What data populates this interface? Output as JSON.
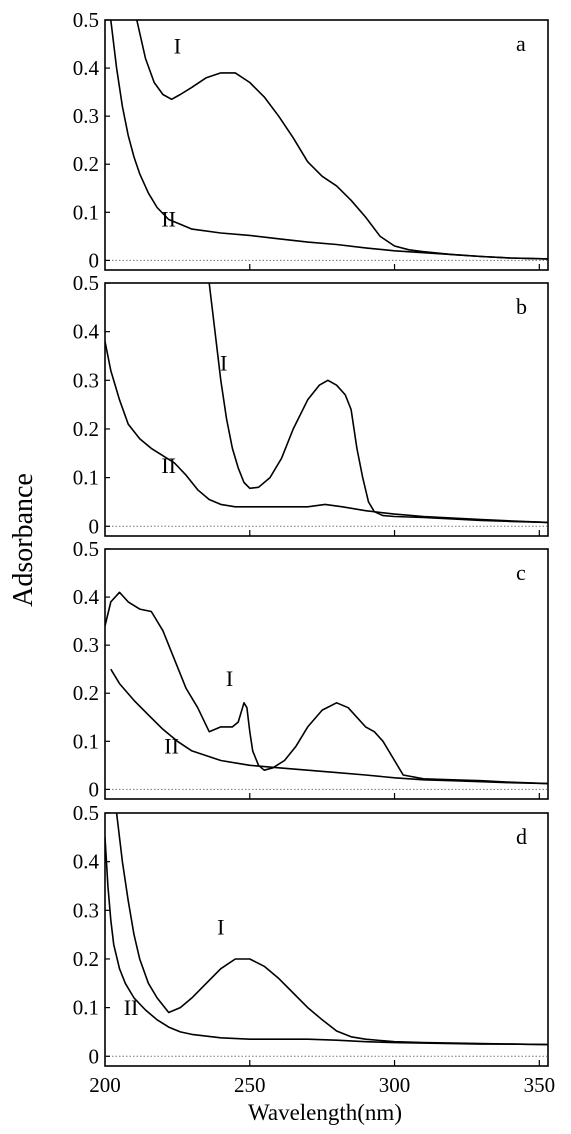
{
  "figure": {
    "ylabel": "Adsorbance",
    "xlabel": "Wavelength(nm)",
    "x_tick_labels": [
      "200",
      "250",
      "300",
      "350"
    ]
  },
  "chart_data": [
    {
      "type": "line",
      "panel_label": "a",
      "xlim": [
        200,
        353
      ],
      "ylim": [
        -0.02,
        0.5
      ],
      "yticks": [
        0,
        0.1,
        0.2,
        0.3,
        0.4,
        0.5
      ],
      "ytick_labels": [
        "0",
        "0.1",
        "0.2",
        "0.3",
        "0.4",
        "0.5"
      ],
      "baseline": 0,
      "series": [
        {
          "name": "I",
          "label_at": [
            225,
            0.43
          ],
          "x": [
            211,
            214,
            217,
            220,
            223,
            226,
            230,
            235,
            240,
            245,
            250,
            255,
            260,
            265,
            270,
            275,
            280,
            285,
            290,
            295,
            300,
            305,
            310,
            320,
            330,
            340,
            353
          ],
          "y": [
            0.5,
            0.42,
            0.37,
            0.345,
            0.335,
            0.345,
            0.36,
            0.38,
            0.39,
            0.39,
            0.37,
            0.34,
            0.3,
            0.255,
            0.205,
            0.175,
            0.155,
            0.125,
            0.09,
            0.05,
            0.03,
            0.022,
            0.018,
            0.012,
            0.008,
            0.005,
            0.003
          ]
        },
        {
          "name": "II",
          "label_at": [
            222,
            0.07
          ],
          "x": [
            202,
            204,
            206,
            208,
            210,
            212,
            215,
            218,
            222,
            226,
            230,
            240,
            250,
            260,
            270,
            280,
            290,
            300,
            310,
            320,
            330,
            340,
            353
          ],
          "y": [
            0.5,
            0.4,
            0.32,
            0.26,
            0.215,
            0.18,
            0.14,
            0.11,
            0.085,
            0.075,
            0.065,
            0.057,
            0.052,
            0.045,
            0.038,
            0.033,
            0.026,
            0.02,
            0.016,
            0.012,
            0.008,
            0.005,
            0.003
          ]
        }
      ]
    },
    {
      "type": "line",
      "panel_label": "b",
      "xlim": [
        200,
        353
      ],
      "ylim": [
        -0.02,
        0.5
      ],
      "yticks": [
        0,
        0.1,
        0.2,
        0.3,
        0.4,
        0.5
      ],
      "ytick_labels": [
        "0",
        "0.1",
        "0.2",
        "0.3",
        "0.4",
        "0.5"
      ],
      "baseline": 0,
      "series": [
        {
          "name": "I",
          "label_at": [
            241,
            0.32
          ],
          "x": [
            236,
            237,
            238,
            239,
            240,
            242,
            244,
            246,
            248,
            250,
            253,
            257,
            261,
            265,
            270,
            274,
            277,
            280,
            283,
            285,
            287,
            289,
            291,
            293,
            296,
            300,
            310,
            320,
            330,
            340,
            353
          ],
          "y": [
            0.5,
            0.45,
            0.4,
            0.35,
            0.3,
            0.22,
            0.16,
            0.12,
            0.09,
            0.078,
            0.08,
            0.1,
            0.14,
            0.2,
            0.26,
            0.29,
            0.3,
            0.29,
            0.27,
            0.24,
            0.16,
            0.1,
            0.05,
            0.03,
            0.022,
            0.02,
            0.018,
            0.015,
            0.012,
            0.01,
            0.008
          ]
        },
        {
          "name": "II",
          "label_at": [
            222,
            0.11
          ],
          "x": [
            200,
            202,
            205,
            208,
            212,
            216,
            220,
            224,
            228,
            232,
            236,
            240,
            245,
            250,
            260,
            270,
            276,
            282,
            290,
            300,
            310,
            320,
            330,
            340,
            353
          ],
          "y": [
            0.38,
            0.32,
            0.26,
            0.21,
            0.18,
            0.16,
            0.145,
            0.13,
            0.105,
            0.075,
            0.055,
            0.045,
            0.04,
            0.04,
            0.04,
            0.04,
            0.045,
            0.04,
            0.032,
            0.025,
            0.02,
            0.017,
            0.014,
            0.011,
            0.008
          ]
        }
      ]
    },
    {
      "type": "line",
      "panel_label": "c",
      "xlim": [
        200,
        353
      ],
      "ylim": [
        -0.02,
        0.5
      ],
      "yticks": [
        0,
        0.1,
        0.2,
        0.3,
        0.4,
        0.5
      ],
      "ytick_labels": [
        "0",
        "0.1",
        "0.2",
        "0.3",
        "0.4",
        "0.5"
      ],
      "baseline": 0,
      "series": [
        {
          "name": "I",
          "label_at": [
            243,
            0.215
          ],
          "x": [
            200,
            202,
            205,
            208,
            212,
            216,
            220,
            224,
            228,
            232,
            236,
            240,
            244,
            246,
            248,
            249,
            250,
            251,
            253,
            255,
            258,
            262,
            266,
            270,
            275,
            280,
            284,
            287,
            290,
            293,
            296,
            300,
            303,
            310,
            320,
            330,
            340,
            353
          ],
          "y": [
            0.34,
            0.39,
            0.41,
            0.39,
            0.375,
            0.37,
            0.33,
            0.27,
            0.21,
            0.17,
            0.12,
            0.13,
            0.13,
            0.14,
            0.18,
            0.17,
            0.12,
            0.08,
            0.05,
            0.04,
            0.045,
            0.06,
            0.09,
            0.13,
            0.165,
            0.18,
            0.17,
            0.15,
            0.13,
            0.12,
            0.1,
            0.06,
            0.03,
            0.022,
            0.02,
            0.018,
            0.015,
            0.012
          ]
        },
        {
          "name": "II",
          "label_at": [
            223,
            0.075
          ],
          "x": [
            202,
            205,
            210,
            215,
            220,
            225,
            230,
            240,
            250,
            260,
            270,
            280,
            290,
            300,
            310,
            320,
            330,
            340,
            353
          ],
          "y": [
            0.25,
            0.22,
            0.185,
            0.155,
            0.125,
            0.1,
            0.08,
            0.06,
            0.05,
            0.045,
            0.04,
            0.035,
            0.03,
            0.024,
            0.02,
            0.018,
            0.016,
            0.014,
            0.012
          ]
        }
      ]
    },
    {
      "type": "line",
      "panel_label": "d",
      "xlim": [
        200,
        353
      ],
      "ylim": [
        -0.02,
        0.5
      ],
      "yticks": [
        0,
        0.1,
        0.2,
        0.3,
        0.4,
        0.5
      ],
      "ytick_labels": [
        "0",
        "0.1",
        "0.2",
        "0.3",
        "0.4",
        "0.5"
      ],
      "baseline": 0,
      "series": [
        {
          "name": "I",
          "label_at": [
            240,
            0.25
          ],
          "x": [
            204,
            206,
            208,
            210,
            212,
            215,
            218,
            222,
            226,
            230,
            235,
            240,
            245,
            250,
            255,
            260,
            265,
            270,
            275,
            280,
            285,
            290,
            300,
            310,
            320,
            330,
            340,
            353
          ],
          "y": [
            0.5,
            0.4,
            0.32,
            0.25,
            0.2,
            0.15,
            0.12,
            0.09,
            0.1,
            0.12,
            0.15,
            0.18,
            0.2,
            0.2,
            0.185,
            0.16,
            0.13,
            0.1,
            0.075,
            0.052,
            0.04,
            0.035,
            0.03,
            0.028,
            0.027,
            0.026,
            0.025,
            0.024
          ]
        },
        {
          "name": "II",
          "label_at": [
            209,
            0.085
          ],
          "x": [
            200,
            201,
            202,
            203,
            205,
            207,
            210,
            214,
            218,
            222,
            226,
            230,
            240,
            250,
            260,
            270,
            280,
            290,
            300,
            310,
            320,
            330,
            340,
            353
          ],
          "y": [
            0.45,
            0.35,
            0.28,
            0.23,
            0.18,
            0.15,
            0.12,
            0.095,
            0.075,
            0.06,
            0.05,
            0.045,
            0.038,
            0.035,
            0.035,
            0.035,
            0.033,
            0.03,
            0.028,
            0.027,
            0.026,
            0.025,
            0.025,
            0.024
          ]
        }
      ]
    }
  ]
}
